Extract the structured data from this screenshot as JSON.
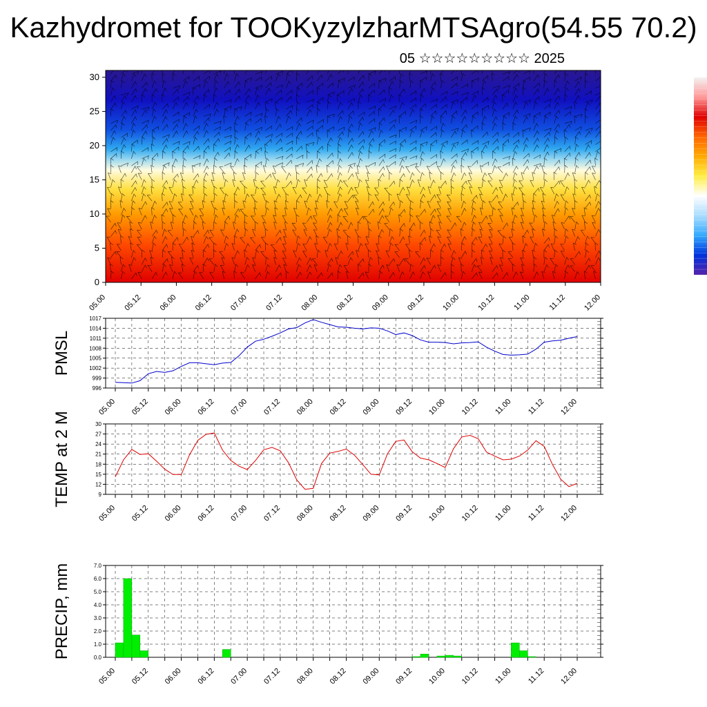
{
  "title": "Kazhydromet for TOOKyzylzharMTSAgro(54.55 70.2)",
  "subtitle": "05 ☆☆☆☆☆☆☆☆☆ 2025",
  "colors": {
    "pmsl_line": "#0000cc",
    "temp_line": "#dd0000",
    "precip_bar": "#00ee00",
    "grid": "#000000"
  },
  "chart_data": [
    {
      "type": "heatmap",
      "name": "vertical-cross-section",
      "x_ticks": [
        "05.00",
        "05.12",
        "06.00",
        "06.12",
        "07.00",
        "07.12",
        "08.00",
        "08.12",
        "09.00",
        "09.12",
        "10.00",
        "10.12",
        "11.00",
        "11.12",
        "12.00"
      ],
      "y_ticks": [
        "0",
        "5",
        "10",
        "15",
        "20",
        "25",
        "30"
      ],
      "ylim": [
        0,
        31
      ],
      "colormap": [
        "#e00000",
        "#ff4a00",
        "#ff9a00",
        "#ffe040",
        "#fffbe0",
        "#9ad8f0",
        "#30a8f0",
        "#1050e0",
        "#1010c0",
        "#2a1890"
      ],
      "colorbar_colors": [
        "#f2f2f2",
        "#ff9999",
        "#e00000",
        "#ff6600",
        "#ffaa00",
        "#ffee44",
        "#ffffff",
        "#aaddff",
        "#33aaff",
        "#0033dd",
        "#5522aa"
      ],
      "isotherm_level": 16,
      "wind_barbs": true
    },
    {
      "type": "line",
      "name": "pmsl",
      "ylabel": "PMSL",
      "y_ticks": [
        "996",
        "999",
        "1002",
        "1005",
        "1008",
        "1011",
        "1014",
        "1017"
      ],
      "ylim": [
        996,
        1017
      ],
      "x_ticks": [
        "05.00",
        "05.12",
        "06.00",
        "06.12",
        "07.00",
        "07.12",
        "08.00",
        "08.12",
        "09.00",
        "09.12",
        "10.00",
        "10.12",
        "11.00",
        "11.12",
        "12.00"
      ],
      "x_hours": [
        0,
        3,
        6,
        9,
        12,
        15,
        18,
        21,
        24,
        27,
        30,
        33,
        36,
        39,
        42,
        45,
        48,
        51,
        54,
        57,
        60,
        63,
        66,
        69,
        72,
        75,
        78,
        81,
        84,
        87,
        90,
        93,
        96,
        99,
        102,
        105,
        108,
        111,
        114,
        117,
        120,
        123,
        126,
        129,
        132,
        135,
        138,
        141,
        144,
        147,
        150,
        153,
        156,
        159,
        162,
        165,
        168
      ],
      "values": [
        997.7,
        997.6,
        997.5,
        998.2,
        1000.3,
        1001.0,
        1000.7,
        1001.2,
        1002.5,
        1003.6,
        1003.6,
        1003.3,
        1003.0,
        1003.5,
        1003.7,
        1005.7,
        1008.3,
        1010.1,
        1010.7,
        1011.6,
        1012.6,
        1013.8,
        1014.2,
        1015.6,
        1016.6,
        1015.8,
        1015.1,
        1014.4,
        1014.3,
        1014.0,
        1013.8,
        1014.1,
        1014.0,
        1013.2,
        1012.1,
        1012.6,
        1011.8,
        1010.5,
        1009.8,
        1009.8,
        1009.7,
        1009.3,
        1009.6,
        1009.7,
        1009.9,
        1008.3,
        1007.1,
        1006.1,
        1005.9,
        1006.0,
        1006.2,
        1007.7,
        1009.8,
        1010.2,
        1010.4,
        1011.0,
        1011.5
      ]
    },
    {
      "type": "line",
      "name": "temp-2m",
      "ylabel": "TEMP at 2 M",
      "y_ticks": [
        "9",
        "12",
        "15",
        "18",
        "21",
        "24",
        "27",
        "30"
      ],
      "ylim": [
        9,
        30
      ],
      "x_ticks": [
        "05.00",
        "05.12",
        "06.00",
        "06.12",
        "07.00",
        "07.12",
        "08.00",
        "08.12",
        "09.00",
        "09.12",
        "10.00",
        "10.12",
        "11.00",
        "11.12",
        "12.00"
      ],
      "x_hours": [
        0,
        3,
        6,
        9,
        12,
        15,
        18,
        21,
        24,
        27,
        30,
        33,
        36,
        39,
        42,
        45,
        48,
        51,
        54,
        57,
        60,
        63,
        66,
        69,
        72,
        75,
        78,
        81,
        84,
        87,
        90,
        93,
        96,
        99,
        102,
        105,
        108,
        111,
        114,
        117,
        120,
        123,
        126,
        129,
        132,
        135,
        138,
        141,
        144,
        147,
        150,
        153,
        156,
        159,
        162,
        165,
        168
      ],
      "values": [
        14.2,
        19.3,
        22.4,
        20.9,
        21.1,
        18.9,
        16.5,
        14.9,
        14.9,
        20.8,
        25.1,
        26.9,
        27.3,
        22.2,
        19.1,
        17.4,
        16.4,
        19.1,
        22.3,
        23.0,
        22.0,
        18.4,
        13.3,
        10.5,
        10.8,
        18.2,
        21.3,
        21.8,
        22.5,
        20.7,
        17.9,
        15.0,
        14.8,
        21.1,
        24.8,
        25.2,
        21.7,
        19.8,
        19.3,
        18.2,
        17.0,
        22.6,
        26.1,
        26.6,
        25.6,
        21.6,
        20.4,
        19.3,
        19.5,
        20.4,
        22.2,
        25.0,
        23.3,
        17.9,
        13.5,
        11.3,
        12.3
      ]
    },
    {
      "type": "bar",
      "name": "precip",
      "ylabel": "PRECIP, mm",
      "y_ticks": [
        "0.0",
        "1.0",
        "2.0",
        "3.0",
        "4.0",
        "5.0",
        "6.0",
        "7.0"
      ],
      "ylim": [
        0,
        7
      ],
      "x_ticks": [
        "05.00",
        "05.12",
        "06.00",
        "06.12",
        "07.00",
        "07.12",
        "08.00",
        "08.12",
        "09.00",
        "09.12",
        "10.00",
        "10.12",
        "11.00",
        "11.12",
        "12.00"
      ],
      "x_hours": [
        3,
        6,
        9,
        12,
        15,
        18,
        21,
        24,
        27,
        30,
        33,
        36,
        39,
        42,
        45,
        48,
        51,
        54,
        57,
        60,
        63,
        66,
        69,
        72,
        75,
        78,
        81,
        84,
        87,
        90,
        93,
        96,
        99,
        102,
        105,
        108,
        111,
        114,
        117,
        120,
        123,
        126,
        129,
        132,
        135,
        138,
        141,
        144,
        147,
        150,
        153,
        156,
        159,
        162,
        165,
        168
      ],
      "values": [
        1.1,
        6.0,
        1.7,
        0.5,
        0,
        0,
        0,
        0,
        0,
        0,
        0,
        0,
        0,
        0.6,
        0,
        0,
        0,
        0,
        0,
        0,
        0,
        0,
        0,
        0,
        0,
        0,
        0,
        0,
        0,
        0,
        0,
        0,
        0,
        0,
        0,
        0,
        0.05,
        0.25,
        0,
        0.1,
        0.15,
        0.1,
        0,
        0,
        0,
        0,
        0,
        0,
        1.1,
        0.5,
        0.05,
        0,
        0,
        0,
        0,
        0
      ]
    }
  ]
}
